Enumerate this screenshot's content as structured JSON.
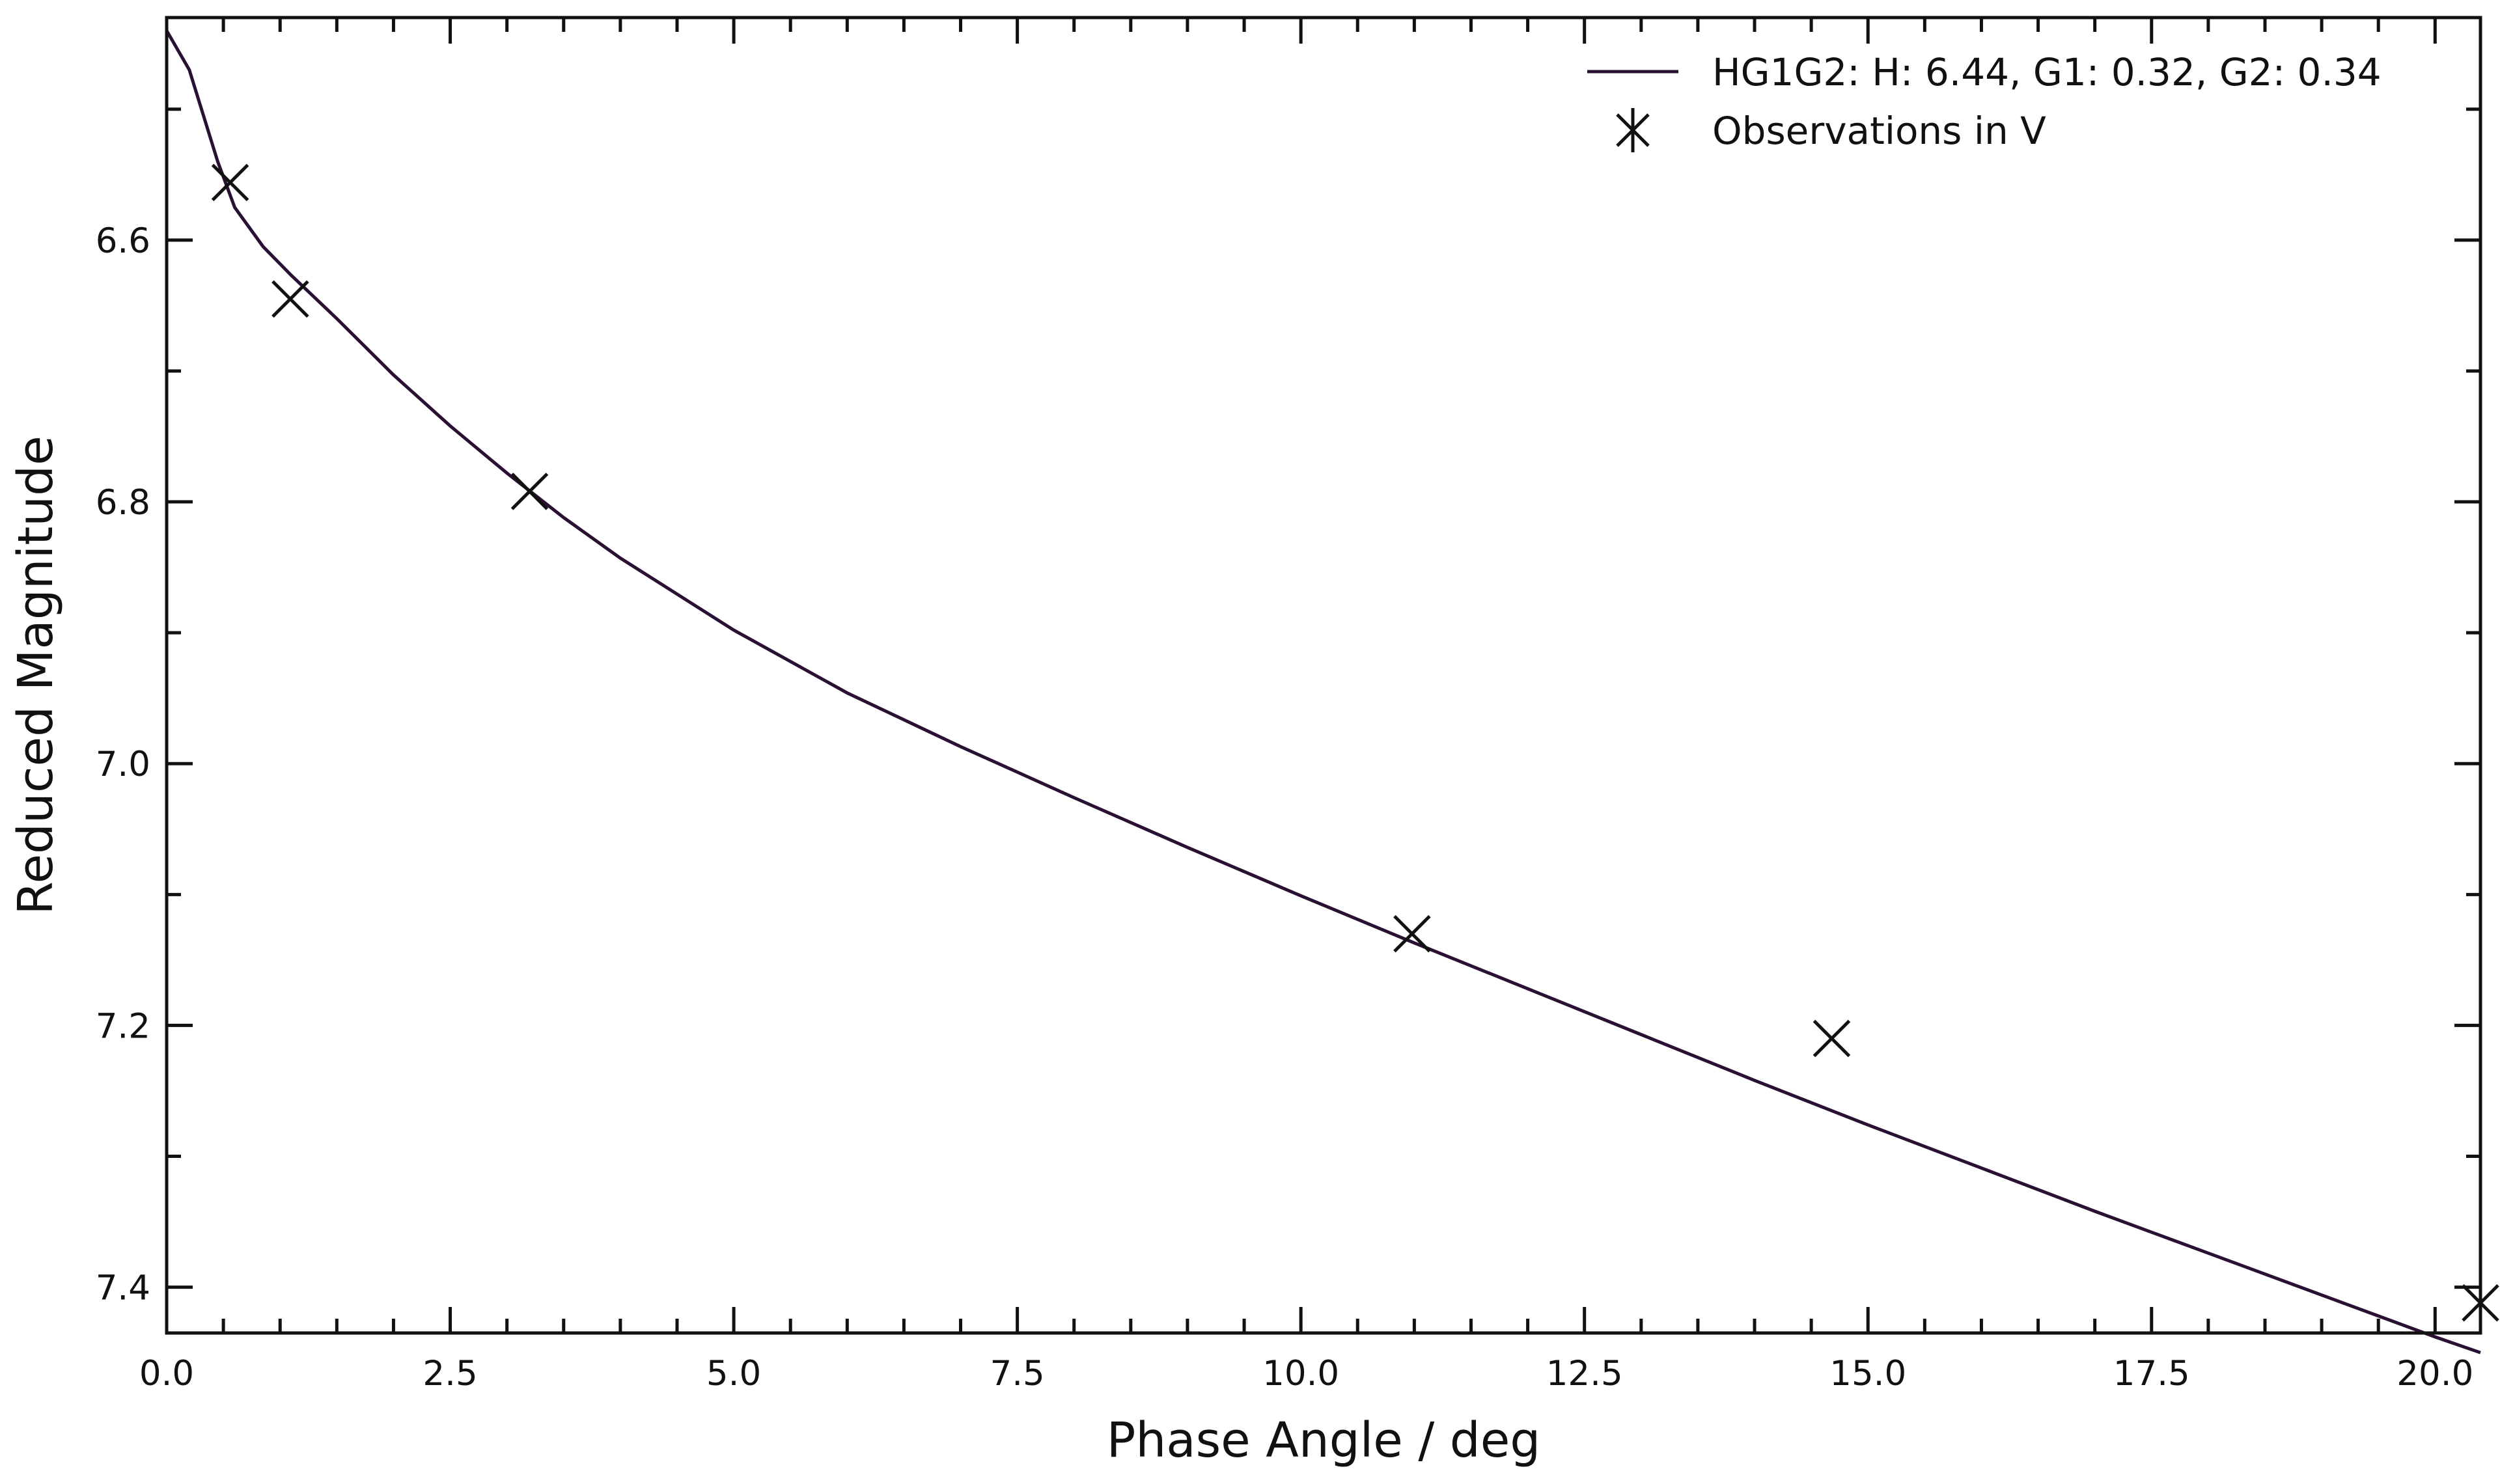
{
  "chart_data": {
    "type": "scatter",
    "title": "",
    "xlabel": "Phase Angle / deg",
    "ylabel": "Reduced Magnitude",
    "xlim": [
      0.0,
      20.4
    ],
    "ylim": [
      6.43,
      7.435
    ],
    "y_inverted": true,
    "grid": false,
    "legend_position": "top-right",
    "x_ticks": [
      "0.0",
      "2.5",
      "5.0",
      "7.5",
      "10.0",
      "12.5",
      "15.0",
      "17.5",
      "20.0"
    ],
    "y_ticks": [
      "6.6",
      "6.8",
      "7.0",
      "7.2",
      "7.4"
    ],
    "series": [
      {
        "name": "HG1G2: H: 6.44, G1: 0.32, G2: 0.34",
        "kind": "line",
        "color": "#2a1133",
        "x": [
          0.0,
          0.2,
          0.45,
          0.6,
          0.85,
          1.1,
          1.5,
          2.0,
          2.5,
          3.0,
          3.5,
          4.0,
          5.0,
          6.0,
          7.0,
          8.0,
          9.0,
          10.0,
          11.0,
          12.0,
          13.0,
          14.0,
          15.0,
          16.0,
          17.0,
          18.0,
          19.0,
          20.0,
          20.4
        ],
        "y": [
          6.44,
          6.47,
          6.54,
          6.575,
          6.605,
          6.627,
          6.66,
          6.703,
          6.742,
          6.778,
          6.812,
          6.843,
          6.898,
          6.946,
          6.987,
          7.026,
          7.064,
          7.101,
          7.137,
          7.172,
          7.207,
          7.242,
          7.276,
          7.309,
          7.342,
          7.374,
          7.406,
          7.438,
          7.45
        ]
      },
      {
        "name": "Observations in V",
        "kind": "scatter",
        "marker": "x",
        "color": "#111111",
        "x": [
          0.56,
          1.09,
          3.2,
          10.98,
          14.68,
          20.4
        ],
        "y": [
          6.556,
          6.645,
          6.792,
          7.13,
          7.21,
          7.412
        ]
      }
    ]
  }
}
